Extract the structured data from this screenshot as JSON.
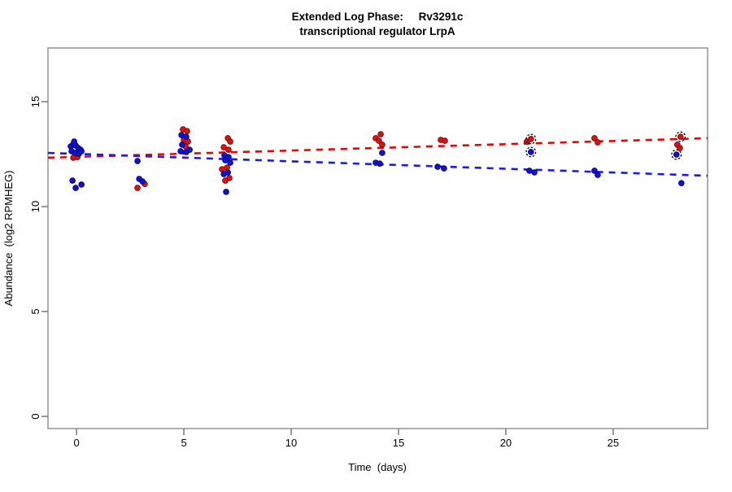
{
  "title": {
    "line1": "Extended Log Phase:     Rv3291c",
    "line2": "transcriptional regulator LrpA"
  },
  "chart_data": {
    "type": "scatter",
    "title": "Extended Log Phase: Rv3291c / transcriptional regulator LrpA",
    "xlabel": "Time  (days)",
    "ylabel": "Abundance  (log2 RPMHEG)",
    "x_ticks": [
      0,
      5,
      10,
      15,
      20,
      25
    ],
    "y_ticks": [
      0,
      5,
      10,
      15
    ],
    "xlim": [
      -1.33,
      29.4
    ],
    "ylim": [
      -0.58,
      17.56
    ],
    "grid": false,
    "frame_color": "#999999",
    "tick_color": "#808080",
    "series": [
      {
        "name": "red-condition",
        "point_color": "#dd1111",
        "point_edge": "#700000",
        "points": [
          [
            0.04,
            12.36
          ],
          [
            -0.15,
            12.33
          ],
          [
            3.18,
            11.08
          ],
          [
            2.84,
            10.89
          ],
          [
            4.96,
            13.68
          ],
          [
            5.15,
            13.6
          ],
          [
            5.0,
            13.18
          ],
          [
            5.19,
            13.1
          ],
          [
            5.08,
            12.87
          ],
          [
            7.05,
            13.26
          ],
          [
            7.16,
            13.1
          ],
          [
            6.86,
            12.83
          ],
          [
            7.08,
            12.71
          ],
          [
            7.01,
            11.86
          ],
          [
            6.78,
            11.78
          ],
          [
            7.12,
            11.36
          ],
          [
            6.93,
            11.24
          ],
          [
            14.17,
            13.45
          ],
          [
            13.94,
            13.26
          ],
          [
            14.09,
            13.14
          ],
          [
            14.24,
            12.95
          ],
          [
            16.97,
            13.18
          ],
          [
            17.16,
            13.14
          ],
          [
            20.98,
            13.1
          ],
          [
            21.17,
            13.22
          ],
          [
            24.13,
            13.26
          ],
          [
            24.28,
            13.06
          ],
          [
            28.14,
            13.33
          ],
          [
            27.99,
            12.95
          ],
          [
            28.11,
            12.79
          ]
        ]
      },
      {
        "name": "blue-condition",
        "point_color": "#1111d6",
        "point_edge": "#000070",
        "points": [
          [
            -0.27,
            12.87
          ],
          [
            -0.15,
            12.98
          ],
          [
            -0.04,
            12.91
          ],
          [
            0.08,
            12.79
          ],
          [
            0.19,
            12.71
          ],
          [
            -0.23,
            12.64
          ],
          [
            -0.08,
            12.56
          ],
          [
            0.11,
            12.52
          ],
          [
            0.23,
            12.64
          ],
          [
            -0.11,
            13.1
          ],
          [
            -0.19,
            11.24
          ],
          [
            -0.04,
            10.89
          ],
          [
            0.23,
            11.05
          ],
          [
            2.84,
            12.17
          ],
          [
            2.92,
            11.32
          ],
          [
            3.07,
            11.2
          ],
          [
            4.89,
            13.41
          ],
          [
            5.11,
            13.33
          ],
          [
            4.92,
            12.95
          ],
          [
            4.85,
            12.64
          ],
          [
            5.11,
            12.6
          ],
          [
            5.27,
            12.71
          ],
          [
            6.89,
            12.44
          ],
          [
            7.08,
            12.36
          ],
          [
            6.93,
            12.21
          ],
          [
            7.16,
            12.09
          ],
          [
            7.05,
            11.63
          ],
          [
            6.86,
            11.55
          ],
          [
            6.97,
            10.7
          ],
          [
            14.24,
            12.56
          ],
          [
            13.94,
            12.09
          ],
          [
            14.13,
            12.05
          ],
          [
            16.82,
            11.9
          ],
          [
            17.12,
            11.82
          ],
          [
            21.17,
            12.6
          ],
          [
            21.1,
            11.71
          ],
          [
            21.33,
            11.63
          ],
          [
            24.13,
            11.71
          ],
          [
            24.28,
            11.51
          ],
          [
            27.95,
            12.48
          ],
          [
            28.18,
            11.12
          ]
        ]
      }
    ],
    "trend_lines": [
      {
        "name": "red-fit",
        "color": "#ee0000",
        "style": "dashed",
        "day_start": -1.33,
        "value_start": 12.33,
        "day_end": 29.4,
        "value_end": 13.26
      },
      {
        "name": "blue-fit",
        "color": "#1a1aee",
        "style": "dashed",
        "day_start": -1.33,
        "value_start": 12.56,
        "day_end": 29.4,
        "value_end": 11.47
      }
    ],
    "outlier_circles": {
      "color": "#000000",
      "points": [
        [
          21.17,
          13.22
        ],
        [
          21.17,
          12.6
        ],
        [
          28.14,
          13.33
        ],
        [
          27.95,
          12.48
        ]
      ]
    }
  }
}
